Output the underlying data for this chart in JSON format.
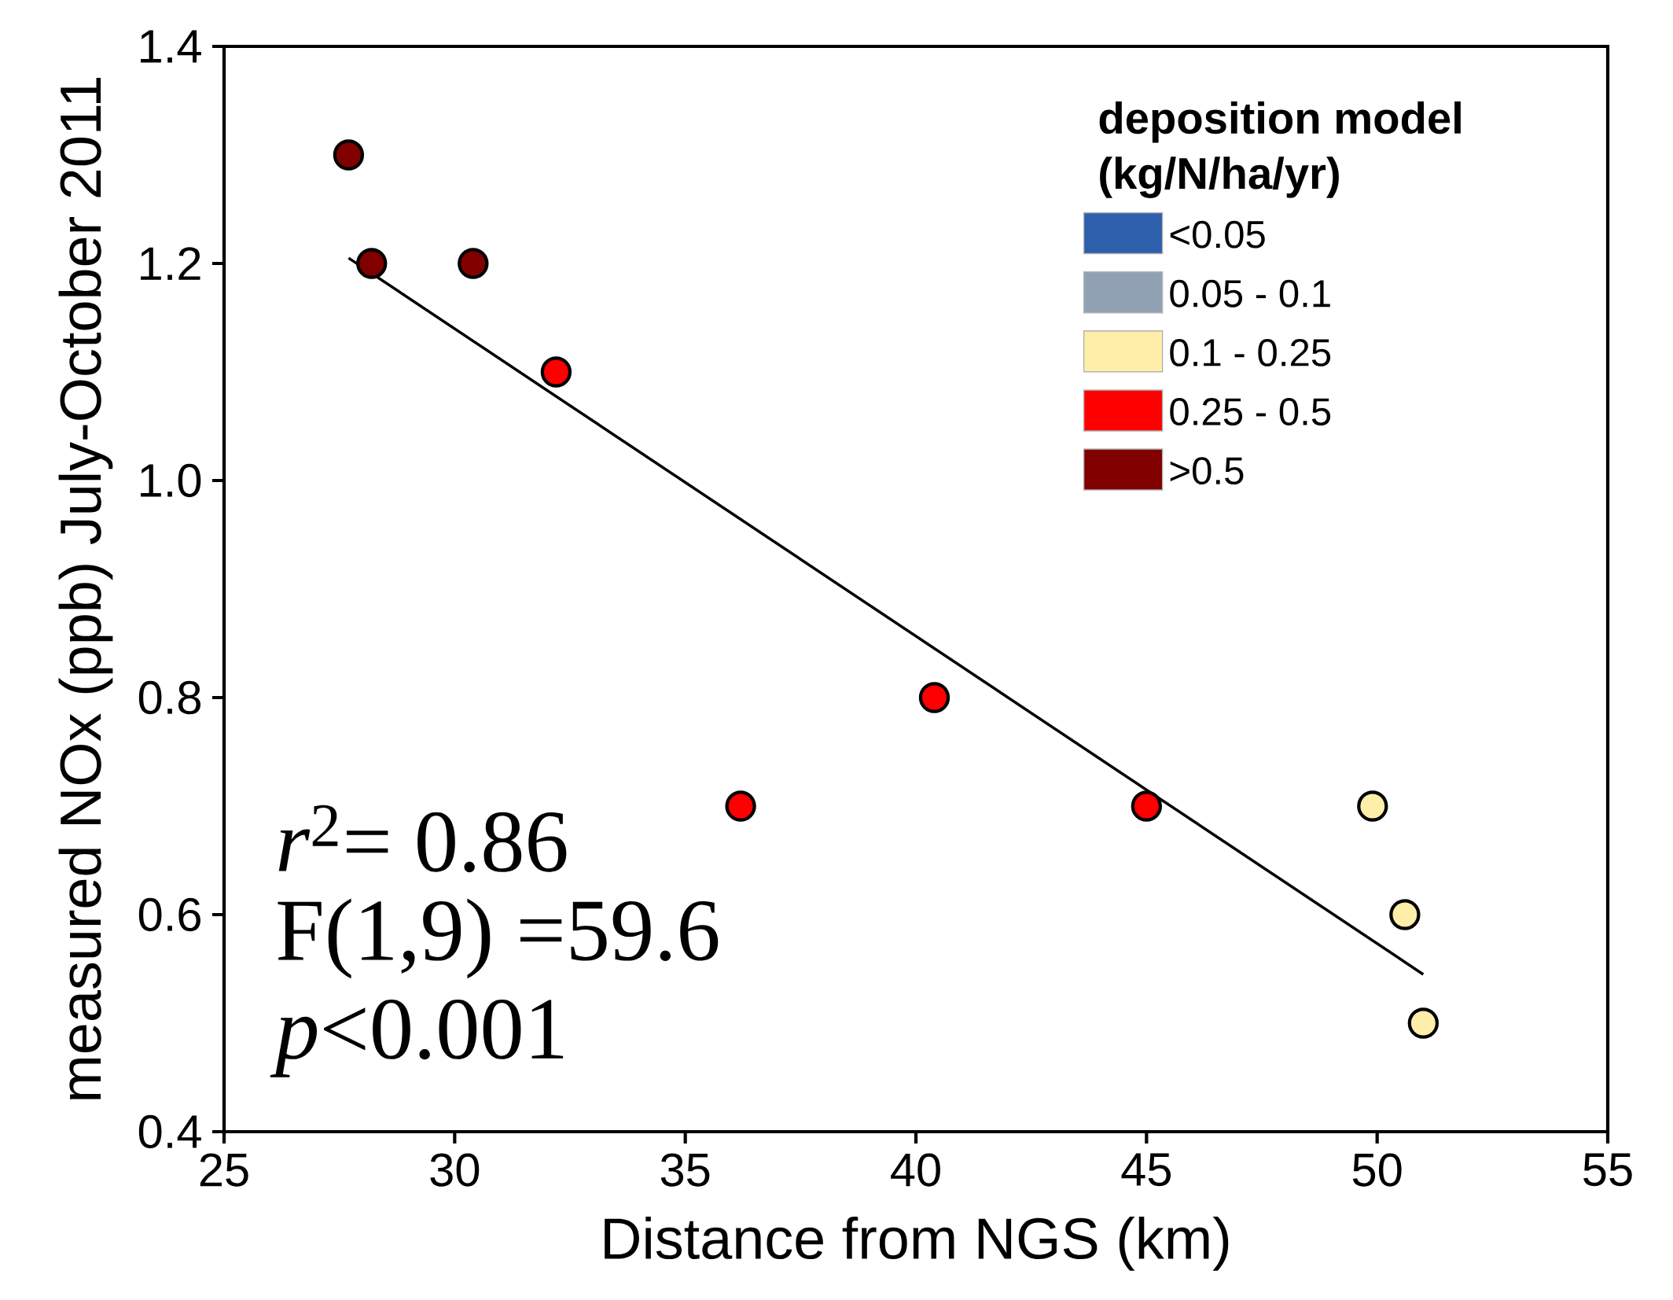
{
  "chart_data": {
    "type": "scatter",
    "xlabel": "Distance from NGS (km)",
    "ylabel": "measured NOx (ppb) July-October 2011",
    "legend_title": "deposition model (kg/N/ha/yr)",
    "legend": "top right",
    "xlim": [
      25,
      55
    ],
    "xticks": [
      25,
      30,
      35,
      40,
      45,
      50,
      55
    ],
    "ylim": [
      0.4,
      1.4
    ],
    "yticks": [
      {
        "value": 0.4,
        "label": "0.4"
      },
      {
        "value": 0.6,
        "label": "0.6"
      },
      {
        "value": 0.8,
        "label": "0.8"
      },
      {
        "value": 1.0,
        "label": "1.0"
      },
      {
        "value": 1.2,
        "label": "1.2"
      },
      {
        "value": 1.4,
        "label": "1.4"
      }
    ],
    "series": [
      {
        "name": "<0.05",
        "color": "#2e5fac"
      },
      {
        "name": "0.05 - 0.1",
        "color": "#8fa1b3"
      },
      {
        "name": "0.1 - 0.25",
        "color": "#ffeeaa",
        "x": [
          49.9,
          50.6,
          51.0
        ],
        "values": [
          0.7,
          0.6,
          0.5
        ]
      },
      {
        "name": "0.25 - 0.5",
        "color": "#ff0000",
        "x": [
          32.2,
          36.2,
          40.4,
          45.0
        ],
        "values": [
          1.1,
          0.7,
          0.8,
          0.7
        ]
      },
      {
        "name": ">0.5",
        "color": "#800000",
        "x": [
          27.7,
          28.2,
          30.4
        ],
        "values": [
          1.3,
          1.2,
          1.2
        ]
      },
      {
        "type": "line",
        "color": "#000000",
        "x": [
          27.7,
          51.0
        ],
        "values": [
          1.205,
          0.545
        ]
      }
    ],
    "annotations": [
      "*r*$^{2}$= 0.86",
      "F(1,9) =59.6",
      "*p*<0.001"
    ]
  }
}
